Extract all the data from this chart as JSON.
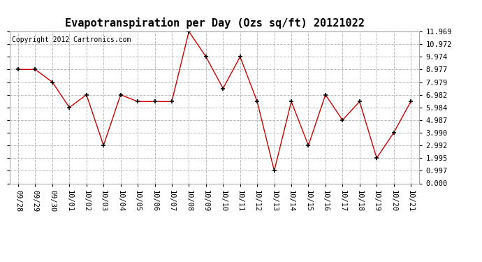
{
  "title": "Evapotranspiration per Day (Ozs sq/ft) 20121022",
  "copyright": "Copyright 2012 Cartronics.com",
  "x_labels": [
    "09/28",
    "09/29",
    "09/30",
    "10/01",
    "10/02",
    "10/03",
    "10/04",
    "10/05",
    "10/06",
    "10/07",
    "10/08",
    "10/09",
    "10/10",
    "10/11",
    "10/12",
    "10/13",
    "10/14",
    "10/15",
    "10/16",
    "10/17",
    "10/18",
    "10/19",
    "10/20",
    "10/21"
  ],
  "y_values": [
    8.977,
    8.977,
    7.979,
    5.984,
    6.982,
    2.992,
    6.982,
    6.449,
    6.449,
    6.449,
    11.969,
    9.974,
    7.479,
    9.974,
    6.449,
    0.997,
    6.449,
    2.992,
    6.982,
    4.987,
    6.449,
    1.995,
    3.99,
    6.449
  ],
  "line_color": "#cc0000",
  "marker_color": "#000000",
  "background_color": "#ffffff",
  "plot_background": "#ffffff",
  "grid_color": "#bbbbbb",
  "ylim": [
    0.0,
    11.969
  ],
  "yticks": [
    0.0,
    0.997,
    1.995,
    2.992,
    3.99,
    4.987,
    5.984,
    6.982,
    7.979,
    8.977,
    9.974,
    10.972,
    11.969
  ],
  "legend_bg": "#cc0000",
  "legend_text_color": "#ffffff",
  "title_fontsize": 11,
  "copyright_fontsize": 7,
  "tick_fontsize": 7.5,
  "border_color": "#aaaaaa"
}
